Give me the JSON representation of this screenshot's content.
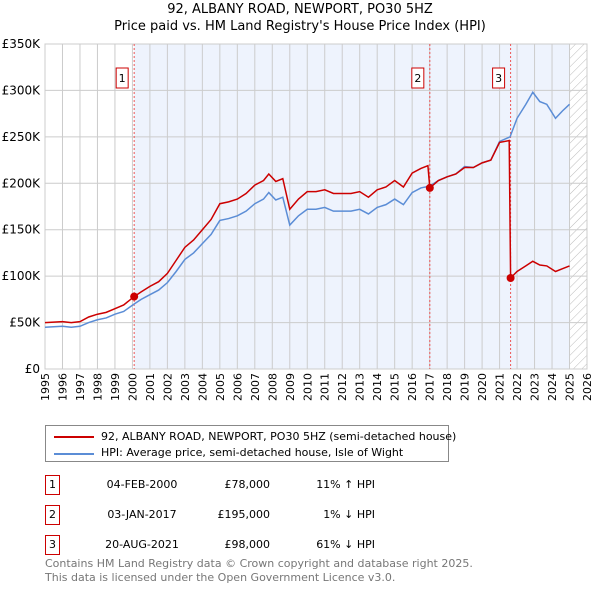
{
  "title": "92, ALBANY ROAD, NEWPORT, PO30 5HZ",
  "subtitle": "Price paid vs. HM Land Registry's House Price Index (HPI)",
  "chart_data": {
    "type": "line",
    "xlim": [
      1995,
      2026
    ],
    "ylim": [
      0,
      350000
    ],
    "y_ticks": [
      {
        "v": 0,
        "label": "£0"
      },
      {
        "v": 50000,
        "label": "£50K"
      },
      {
        "v": 100000,
        "label": "£100K"
      },
      {
        "v": 150000,
        "label": "£150K"
      },
      {
        "v": 200000,
        "label": "£200K"
      },
      {
        "v": 250000,
        "label": "£250K"
      },
      {
        "v": 300000,
        "label": "£300K"
      },
      {
        "v": 350000,
        "label": "£350K"
      }
    ],
    "x_ticks": [
      "1995",
      "1996",
      "1997",
      "1998",
      "1999",
      "2000",
      "2001",
      "2002",
      "2003",
      "2004",
      "2005",
      "2006",
      "2007",
      "2008",
      "2009",
      "2010",
      "2011",
      "2012",
      "2013",
      "2014",
      "2015",
      "2016",
      "2017",
      "2018",
      "2019",
      "2020",
      "2021",
      "2022",
      "2023",
      "2024",
      "2025",
      "2026"
    ],
    "shaded_range": [
      2000.1,
      2025.0
    ],
    "hatched_from": 2025.0,
    "series": [
      {
        "name": "92, ALBANY ROAD, NEWPORT, PO30 5HZ (semi-detached house)",
        "color": "#cc0000",
        "points": [
          [
            1995,
            50
          ],
          [
            1996,
            51
          ],
          [
            1996.5,
            50
          ],
          [
            1997,
            51
          ],
          [
            1997.5,
            56
          ],
          [
            1998,
            59
          ],
          [
            1998.5,
            61
          ],
          [
            1999,
            65
          ],
          [
            1999.5,
            69
          ],
          [
            2000.1,
            78
          ],
          [
            2000.5,
            83
          ],
          [
            2001,
            89
          ],
          [
            2001.5,
            94
          ],
          [
            2002,
            103
          ],
          [
            2002.5,
            117
          ],
          [
            2003,
            131
          ],
          [
            2003.5,
            139
          ],
          [
            2004,
            150
          ],
          [
            2004.5,
            161
          ],
          [
            2005,
            178
          ],
          [
            2005.5,
            180
          ],
          [
            2006,
            183
          ],
          [
            2006.5,
            189
          ],
          [
            2007,
            198
          ],
          [
            2007.5,
            203
          ],
          [
            2007.8,
            210
          ],
          [
            2008.2,
            202
          ],
          [
            2008.6,
            205
          ],
          [
            2009,
            172
          ],
          [
            2009.5,
            183
          ],
          [
            2010,
            191
          ],
          [
            2010.5,
            191
          ],
          [
            2011,
            193
          ],
          [
            2011.5,
            189
          ],
          [
            2012,
            189
          ],
          [
            2012.5,
            189
          ],
          [
            2013,
            191
          ],
          [
            2013.5,
            185
          ],
          [
            2014,
            193
          ],
          [
            2014.5,
            196
          ],
          [
            2015,
            203
          ],
          [
            2015.5,
            196
          ],
          [
            2016,
            211
          ],
          [
            2016.5,
            216
          ],
          [
            2016.9,
            219
          ],
          [
            2017.01,
            195
          ],
          [
            2017.5,
            203
          ],
          [
            2018,
            207
          ],
          [
            2018.5,
            210
          ],
          [
            2019,
            217
          ],
          [
            2019.5,
            217
          ],
          [
            2020,
            222
          ],
          [
            2020.5,
            225
          ],
          [
            2021,
            244
          ],
          [
            2021.55,
            246
          ],
          [
            2021.63,
            98
          ],
          [
            2022,
            105
          ],
          [
            2022.5,
            111
          ],
          [
            2022.9,
            116
          ],
          [
            2023.3,
            112
          ],
          [
            2023.7,
            111
          ],
          [
            2024.2,
            105
          ],
          [
            2024.6,
            108
          ],
          [
            2025,
            111
          ]
        ]
      },
      {
        "name": "HPI: Average price, semi-detached house, Isle of Wight",
        "color": "#5b8dd6",
        "points": [
          [
            1995,
            45
          ],
          [
            1996,
            46
          ],
          [
            1996.5,
            45
          ],
          [
            1997,
            46
          ],
          [
            1997.5,
            50
          ],
          [
            1998,
            53
          ],
          [
            1998.5,
            55
          ],
          [
            1999,
            59
          ],
          [
            1999.5,
            62
          ],
          [
            2000.1,
            70
          ],
          [
            2000.5,
            75
          ],
          [
            2001,
            80
          ],
          [
            2001.5,
            85
          ],
          [
            2002,
            93
          ],
          [
            2002.5,
            105
          ],
          [
            2003,
            118
          ],
          [
            2003.5,
            125
          ],
          [
            2004,
            135
          ],
          [
            2004.5,
            145
          ],
          [
            2005,
            160
          ],
          [
            2005.5,
            162
          ],
          [
            2006,
            165
          ],
          [
            2006.5,
            170
          ],
          [
            2007,
            178
          ],
          [
            2007.5,
            183
          ],
          [
            2007.8,
            190
          ],
          [
            2008.2,
            182
          ],
          [
            2008.6,
            185
          ],
          [
            2009,
            155
          ],
          [
            2009.5,
            165
          ],
          [
            2010,
            172
          ],
          [
            2010.5,
            172
          ],
          [
            2011,
            174
          ],
          [
            2011.5,
            170
          ],
          [
            2012,
            170
          ],
          [
            2012.5,
            170
          ],
          [
            2013,
            172
          ],
          [
            2013.5,
            167
          ],
          [
            2014,
            174
          ],
          [
            2014.5,
            177
          ],
          [
            2015,
            183
          ],
          [
            2015.5,
            177
          ],
          [
            2016,
            190
          ],
          [
            2016.5,
            195
          ],
          [
            2017,
            197
          ],
          [
            2017.5,
            203
          ],
          [
            2018,
            207
          ],
          [
            2018.5,
            210
          ],
          [
            2019,
            218
          ],
          [
            2019.5,
            217
          ],
          [
            2020,
            222
          ],
          [
            2020.5,
            225
          ],
          [
            2021,
            245
          ],
          [
            2021.6,
            250
          ],
          [
            2022,
            270
          ],
          [
            2022.5,
            285
          ],
          [
            2022.9,
            298
          ],
          [
            2023.3,
            288
          ],
          [
            2023.7,
            285
          ],
          [
            2024.2,
            270
          ],
          [
            2024.6,
            278
          ],
          [
            2025,
            285
          ]
        ]
      }
    ],
    "sales": [
      {
        "id": "1",
        "x": 2000.1,
        "y": 78
      },
      {
        "id": "2",
        "x": 2017.01,
        "y": 195
      },
      {
        "id": "3",
        "x": 2021.63,
        "y": 98
      }
    ]
  },
  "legend": {
    "property": "92, ALBANY ROAD, NEWPORT, PO30 5HZ (semi-detached house)",
    "hpi": "HPI: Average price, semi-detached house, Isle of Wight"
  },
  "transactions": [
    {
      "id": "1",
      "date": "04-FEB-2000",
      "price": "£78,000",
      "hpi": "11% ↑ HPI"
    },
    {
      "id": "2",
      "date": "03-JAN-2017",
      "price": "£195,000",
      "hpi": "1% ↓ HPI"
    },
    {
      "id": "3",
      "date": "20-AUG-2021",
      "price": "£98,000",
      "hpi": "61% ↓ HPI"
    }
  ],
  "footer": [
    "Contains HM Land Registry data © Crown copyright and database right 2025.",
    "This data is licensed under the Open Government Licence v3.0."
  ]
}
